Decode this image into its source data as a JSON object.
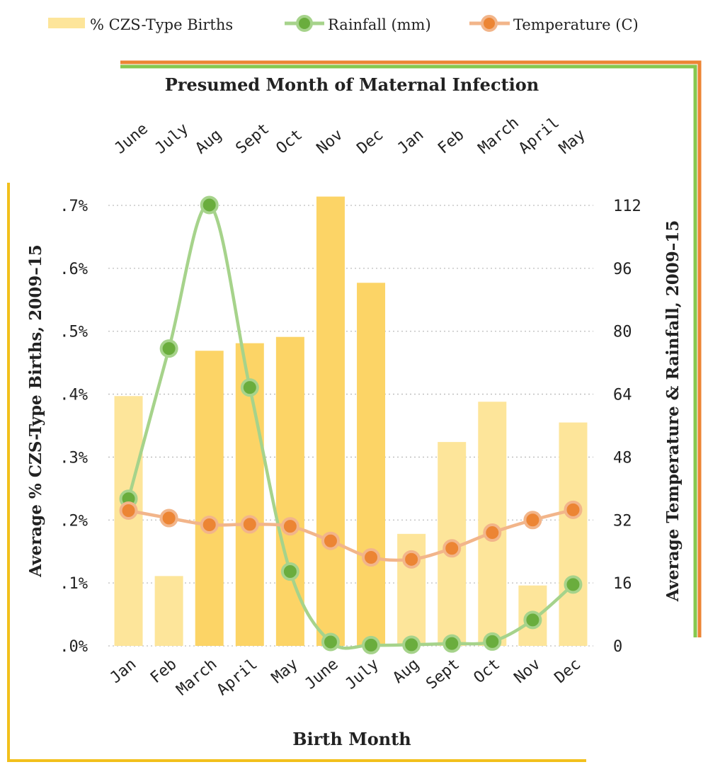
{
  "legend": {
    "births": "% CZS-Type Births",
    "rainfall": "Rainfall (mm)",
    "temperature": "Temperature (C)"
  },
  "chart_data": {
    "type": "bar",
    "title": "Presumed Month of Maternal Infection",
    "xlabel": "Birth Month",
    "ylabel_left": "Average % CZS-Type Births, 2009–15",
    "ylabel_right": "Average Temperature & Rainfall, 2009–15",
    "categories": [
      "Jan",
      "Feb",
      "March",
      "April",
      "May",
      "June",
      "July",
      "Aug",
      "Sept",
      "Oct",
      "Nov",
      "Dec"
    ],
    "top_categories": [
      "June",
      "July",
      "Aug",
      "Sept",
      "Oct",
      "Nov",
      "Dec",
      "Jan",
      "Feb",
      "March",
      "April",
      "May"
    ],
    "left_axis": {
      "ylim": [
        0,
        0.7
      ],
      "ticks": [
        ".0%",
        ".1%",
        ".2%",
        ".3%",
        ".4%",
        ".5%",
        ".6%",
        ".7%"
      ]
    },
    "right_axis": {
      "ylim": [
        0,
        112
      ],
      "ticks": [
        "0",
        "16",
        "32",
        "48",
        "64",
        "80",
        "96",
        "112"
      ]
    },
    "grid": true,
    "legend_position": "top",
    "series": [
      {
        "name": "% CZS-Type Births",
        "axis": "left",
        "kind": "bar",
        "values": [
          0.397,
          0.111,
          0.469,
          0.481,
          0.491,
          0.714,
          0.577,
          0.178,
          0.324,
          0.388,
          0.096,
          0.355
        ],
        "highlighted": [
          false,
          false,
          true,
          true,
          true,
          true,
          true,
          false,
          false,
          false,
          false,
          false
        ]
      },
      {
        "name": "Rainfall (mm)",
        "axis": "right",
        "kind": "line",
        "values": [
          37.4,
          75.6,
          112.1,
          65.7,
          18.9,
          1.0,
          0.2,
          0.3,
          0.6,
          1.1,
          6.6,
          15.6
        ]
      },
      {
        "name": "Temperature (C)",
        "axis": "right",
        "kind": "line",
        "values": [
          34.4,
          32.5,
          30.8,
          30.9,
          30.4,
          26.7,
          22.5,
          22.0,
          24.8,
          28.8,
          32.0,
          34.6
        ]
      }
    ],
    "colors": {
      "bar_highlight": "#fcd466",
      "bar_light": "#fde59a",
      "rainfall": "#6aad3d",
      "rainfall_line": "#a6d38b",
      "temperature": "#ec8534",
      "temperature_line": "#f2b58a",
      "bracket_left": "#f2c01c",
      "grid": "#bdbdbd",
      "text": "#222222"
    }
  }
}
